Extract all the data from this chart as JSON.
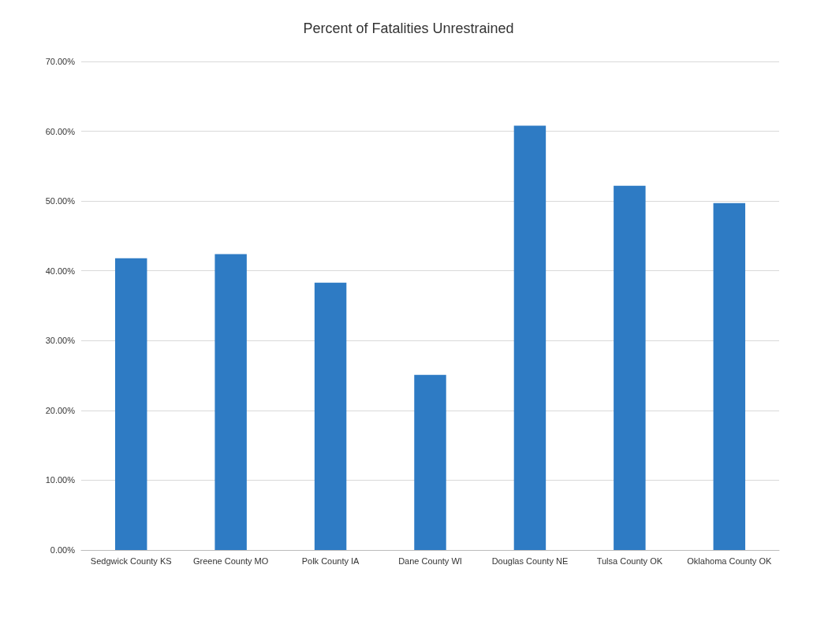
{
  "chart_data": {
    "type": "bar",
    "title": "Percent of Fatalities Unrestrained",
    "categories": [
      "Sedgwick County KS",
      "Greene County MO",
      "Polk County IA",
      "Dane County WI",
      "Douglas County NE",
      "Tulsa County OK",
      "Oklahoma County OK"
    ],
    "values": [
      41.8,
      42.4,
      38.3,
      25.1,
      60.8,
      52.2,
      49.7
    ],
    "color": "#2e7bc4",
    "ylim": [
      0,
      70
    ],
    "yticks": [
      {
        "value": 0,
        "label": "0.00%"
      },
      {
        "value": 10,
        "label": "10.00%"
      },
      {
        "value": 20,
        "label": "20.00%"
      },
      {
        "value": 30,
        "label": "30.00%"
      },
      {
        "value": 40,
        "label": "40.00%"
      },
      {
        "value": 50,
        "label": "50.00%"
      },
      {
        "value": 60,
        "label": "60.00%"
      },
      {
        "value": 70,
        "label": "70.00%"
      }
    ],
    "grid": "y"
  }
}
